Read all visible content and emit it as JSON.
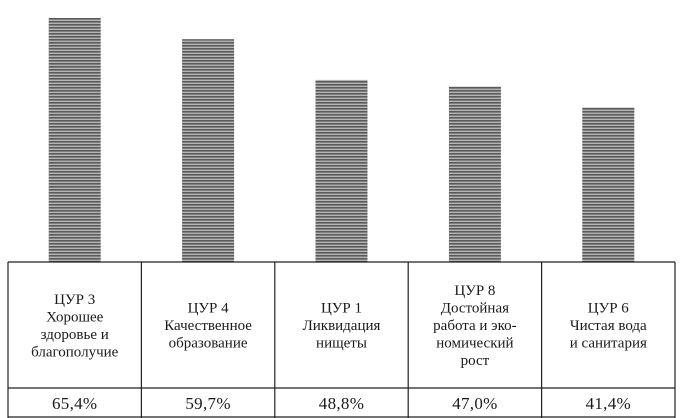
{
  "chart_data": {
    "type": "bar",
    "title": "",
    "xlabel": "",
    "ylabel": "",
    "ylim": [
      0,
      67
    ],
    "grid": false,
    "legend": "none",
    "bar_color": "#8a8a8a",
    "categories": [
      [
        "ЦУР 3",
        "Хорошее",
        "здоровье и",
        "благополучие"
      ],
      [
        "ЦУР 4",
        "Качественное",
        "образование"
      ],
      [
        "ЦУР 1",
        "Ликвидация",
        "нищеты"
      ],
      [
        "ЦУР 8",
        "Достойная",
        "работа и эко-",
        "номический",
        "рост"
      ],
      [
        "ЦУР 6",
        "Чистая вода",
        "и санитария"
      ]
    ],
    "values": [
      65.4,
      59.7,
      48.8,
      47.0,
      41.4
    ],
    "value_labels": [
      "65,4%",
      "59,7%",
      "48,8%",
      "47,0%",
      "41,4%"
    ]
  }
}
